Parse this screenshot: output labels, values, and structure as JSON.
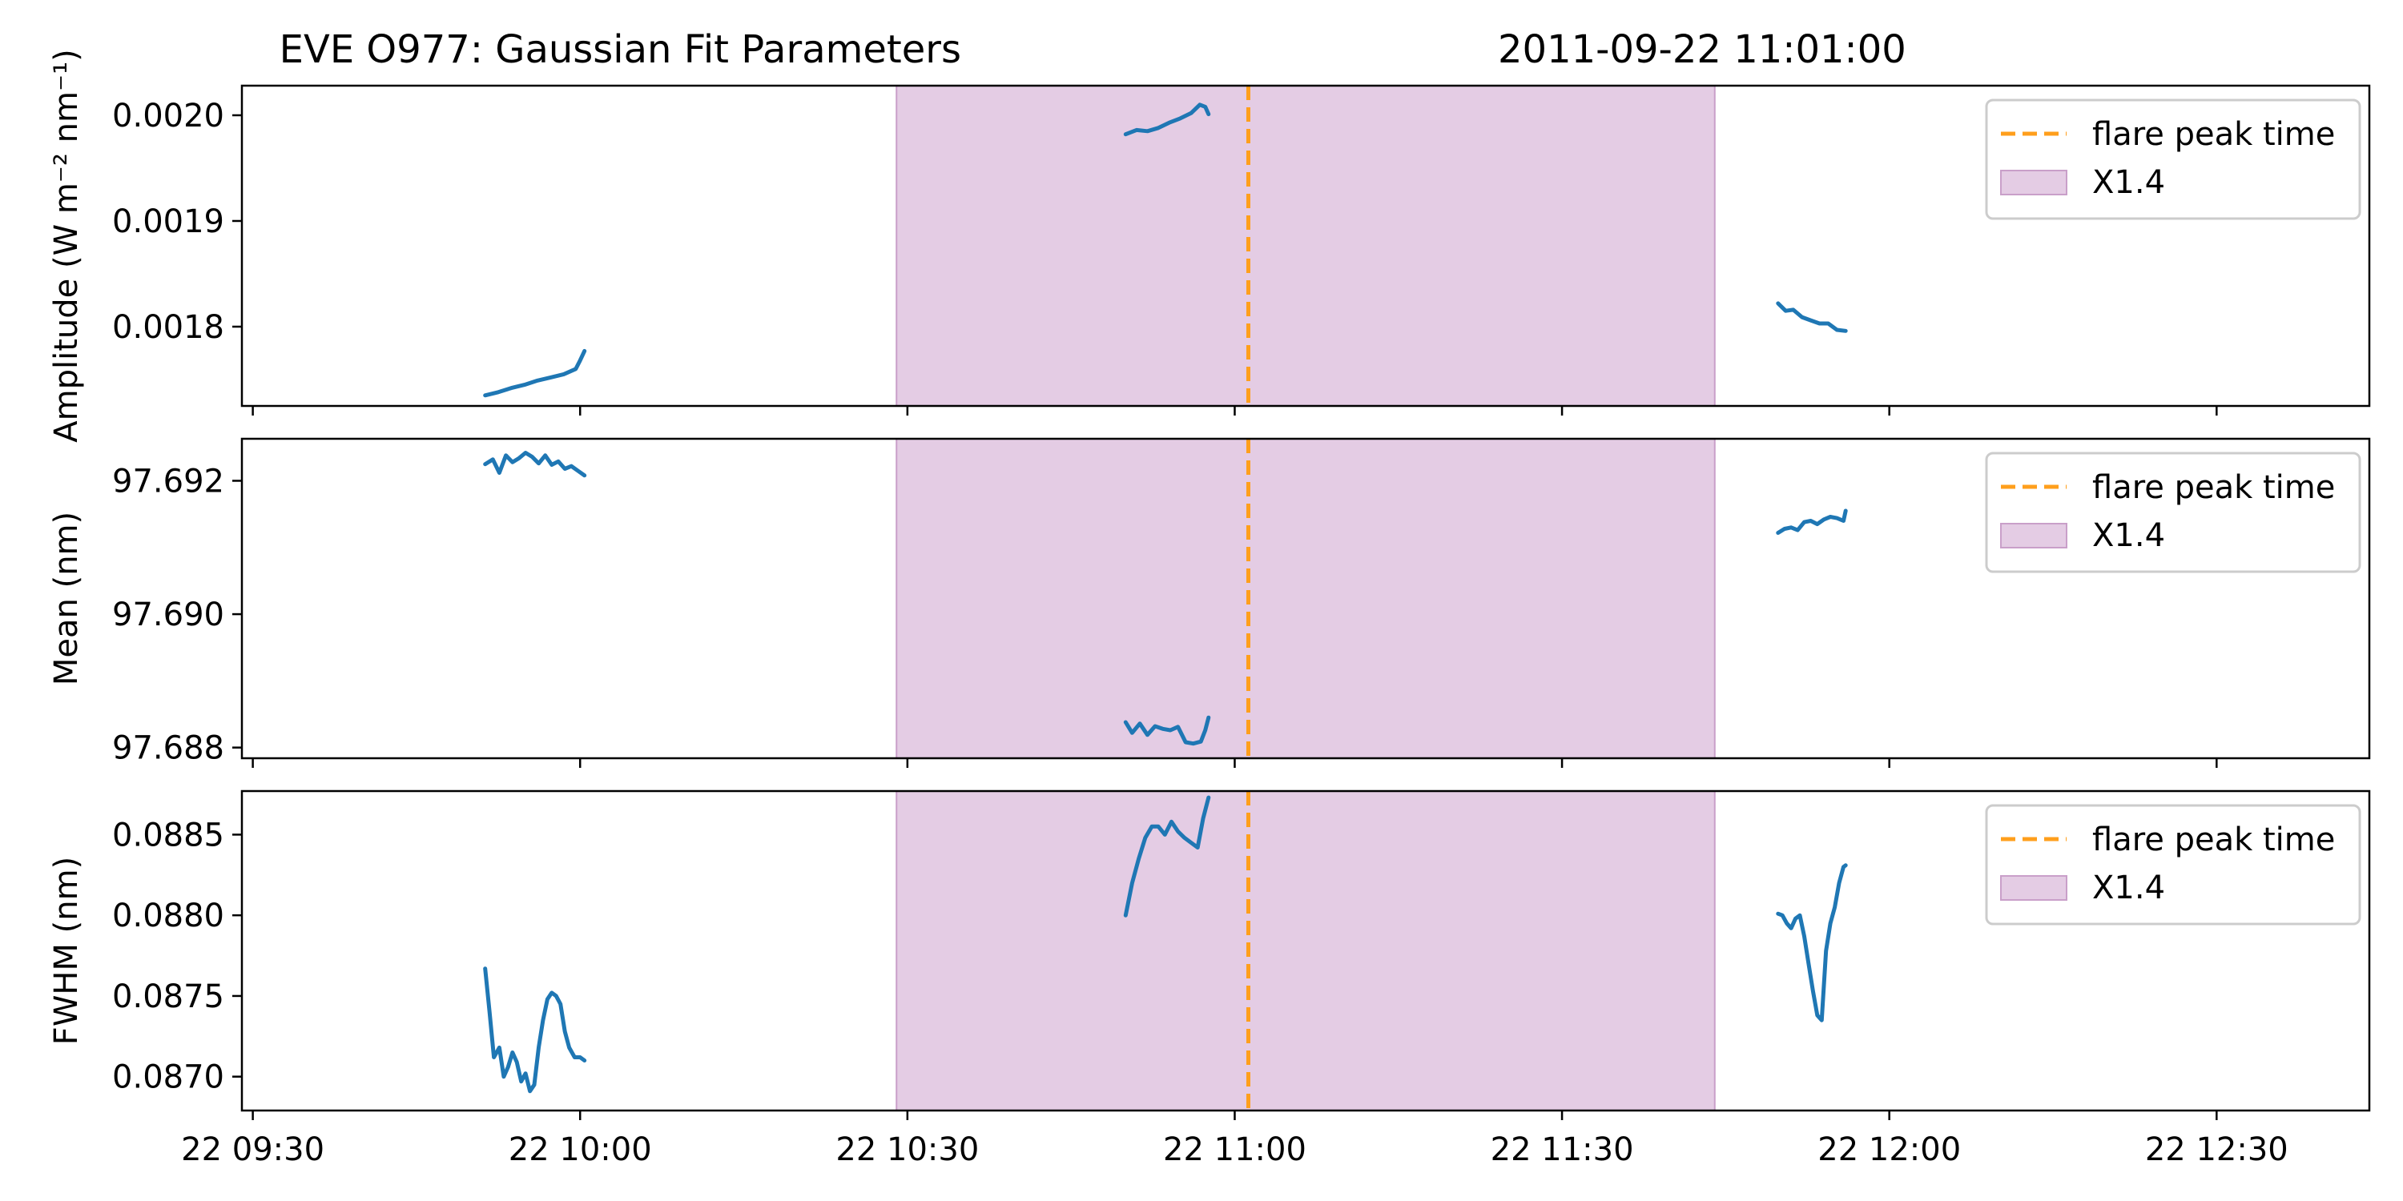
{
  "chart_data": {
    "type": "line",
    "title": "EVE O977: Gaussian Fit Parameters",
    "timestamp": "2011-09-22 11:01:00",
    "x_tick_labels": [
      "22 09:30",
      "22 10:00",
      "22 10:30",
      "22 11:00",
      "22 11:30",
      "22 12:00",
      "22 12:30"
    ],
    "x_tick_minutes": [
      570,
      600,
      630,
      660,
      690,
      720,
      750
    ],
    "xlim_minutes": [
      569,
      764
    ],
    "flare_peak_minute": 661.25,
    "flare_span_minutes": [
      629,
      704
    ],
    "legend": {
      "peak_label": "flare peak time",
      "span_label": "X1.4",
      "placement": "upper right"
    },
    "colors": {
      "series": "#1f77b4",
      "peak_line": "#ff9f1c",
      "span_fill": "#e4cce4",
      "span_edge": "#c99fc9"
    },
    "panels": [
      {
        "ylabel": "Amplitude (W m⁻² nm⁻¹)",
        "ylim": [
          0.001725,
          0.002028
        ],
        "yticks": [
          0.0018,
          0.0019,
          0.002
        ],
        "ytick_labels": [
          "0.0018",
          "0.0019",
          "0.0020"
        ],
        "segments": [
          {
            "x": [
              591.3,
              592.5,
              593.7,
              594.9,
              596.1,
              597.3,
              598.5,
              599.6,
              600.0,
              600.4
            ],
            "y": [
              0.001735,
              0.001738,
              0.001742,
              0.001745,
              0.001749,
              0.001752,
              0.001755,
              0.00176,
              0.001768,
              0.001777
            ]
          },
          {
            "x": [
              650.0,
              651.0,
              652.0,
              653.0,
              654.0,
              655.0,
              656.0,
              656.8,
              657.3,
              657.6
            ],
            "y": [
              0.001982,
              0.001986,
              0.001985,
              0.001988,
              0.001993,
              0.001997,
              0.002002,
              0.00201,
              0.002008,
              0.002001
            ]
          },
          {
            "x": [
              709.8,
              710.5,
              711.2,
              712.0,
              712.8,
              713.6,
              714.4,
              715.2,
              716.0
            ],
            "y": [
              0.001822,
              0.001815,
              0.001816,
              0.001809,
              0.001806,
              0.001803,
              0.001803,
              0.001797,
              0.001796
            ]
          }
        ]
      },
      {
        "ylabel": "Mean (nm)",
        "ylim": [
          97.68784,
          97.69263
        ],
        "yticks": [
          97.688,
          97.69,
          97.692
        ],
        "ytick_labels": [
          "97.688",
          "97.690",
          "97.692"
        ],
        "segments": [
          {
            "x": [
              591.3,
              592.0,
              592.6,
              593.2,
              593.8,
              594.4,
              595.0,
              595.6,
              596.2,
              596.8,
              597.4,
              598.0,
              598.6,
              599.2,
              599.8,
              600.4
            ],
            "y": [
              97.69225,
              97.69232,
              97.69212,
              97.69238,
              97.69228,
              97.69234,
              97.69242,
              97.69236,
              97.69226,
              97.69238,
              97.69224,
              97.69229,
              97.69218,
              97.69222,
              97.69215,
              97.69208
            ]
          },
          {
            "x": [
              650.0,
              650.6,
              651.3,
              652.0,
              652.7,
              653.4,
              654.1,
              654.8,
              655.5,
              656.2,
              656.9,
              657.3,
              657.6
            ],
            "y": [
              97.68838,
              97.68822,
              97.68836,
              97.68819,
              97.68832,
              97.68828,
              97.68826,
              97.68831,
              97.68808,
              97.68806,
              97.68809,
              97.68826,
              97.68845
            ]
          },
          {
            "x": [
              709.8,
              710.4,
              711.0,
              711.6,
              712.2,
              712.8,
              713.4,
              714.0,
              714.6,
              715.2,
              715.8,
              716.0
            ],
            "y": [
              97.69122,
              97.69128,
              97.6913,
              97.69126,
              97.69138,
              97.6914,
              97.69135,
              97.69142,
              97.69146,
              97.69144,
              97.6914,
              97.69155
            ]
          }
        ]
      },
      {
        "ylabel": "FWHM (nm)",
        "ylim": [
          0.08679,
          0.08877
        ],
        "yticks": [
          0.087,
          0.0875,
          0.088,
          0.0885
        ],
        "ytick_labels": [
          "0.0870",
          "0.0875",
          "0.0880",
          "0.0885"
        ],
        "segments": [
          {
            "x": [
              591.3,
              591.7,
              592.1,
              592.6,
              593.0,
              593.4,
              593.8,
              594.2,
              594.6,
              595.0,
              595.4,
              595.8,
              596.2,
              596.6,
              597.0,
              597.4,
              597.8,
              598.2,
              598.6,
              599.0,
              599.5,
              600.0,
              600.4
            ],
            "y": [
              0.08767,
              0.0874,
              0.08712,
              0.08718,
              0.087,
              0.08706,
              0.08715,
              0.08709,
              0.08697,
              0.08702,
              0.08691,
              0.08695,
              0.08718,
              0.08735,
              0.08748,
              0.08752,
              0.0875,
              0.08745,
              0.08728,
              0.08718,
              0.08712,
              0.08712,
              0.0871
            ]
          },
          {
            "x": [
              650.0,
              650.6,
              651.2,
              651.8,
              652.4,
              653.0,
              653.6,
              654.2,
              654.8,
              655.4,
              656.0,
              656.6,
              657.1,
              657.6
            ],
            "y": [
              0.088,
              0.0882,
              0.08835,
              0.08848,
              0.08855,
              0.08855,
              0.0885,
              0.08858,
              0.08852,
              0.08848,
              0.08845,
              0.08842,
              0.0886,
              0.08873
            ]
          },
          {
            "x": [
              709.8,
              710.2,
              710.6,
              711.0,
              711.4,
              711.8,
              712.2,
              712.6,
              713.0,
              713.4,
              713.8,
              714.2,
              714.6,
              715.0,
              715.4,
              715.8,
              716.0
            ],
            "y": [
              0.08801,
              0.088,
              0.08795,
              0.08792,
              0.08798,
              0.088,
              0.08787,
              0.0877,
              0.08753,
              0.08738,
              0.08735,
              0.08778,
              0.08795,
              0.08805,
              0.0882,
              0.0883,
              0.08831
            ]
          }
        ]
      }
    ]
  }
}
